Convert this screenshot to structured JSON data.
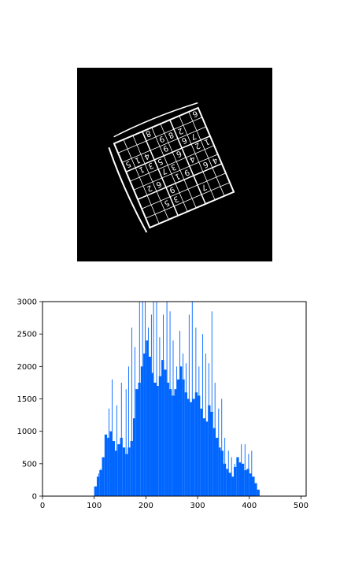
{
  "figure": {
    "background": "#ffffff"
  },
  "image_panel": {
    "background": "#000000",
    "foreground": "#ffffff",
    "description_digits_visible": [
      "6",
      "2",
      "9",
      "8",
      "1",
      "5",
      "9",
      "4",
      "5",
      "3",
      "1",
      "7",
      "6",
      "4",
      "2",
      "7",
      "3",
      "9",
      "6",
      "4",
      "1",
      "6",
      "9",
      "8",
      "6",
      "2",
      "5",
      "7",
      "3",
      "1"
    ]
  },
  "chart_data": {
    "type": "bar",
    "title": "",
    "xlabel": "",
    "ylabel": "",
    "xlim": [
      0,
      510
    ],
    "ylim": [
      0,
      3000
    ],
    "grid": false,
    "xticks": [
      0,
      100,
      200,
      300,
      400,
      500
    ],
    "yticks": [
      0,
      500,
      1000,
      1500,
      2000,
      2500,
      3000
    ],
    "bar_color": "#0066ff",
    "series": [
      {
        "x": [
          100,
          105,
          110,
          115,
          120,
          125,
          130,
          135,
          140,
          145,
          150,
          155,
          160,
          165,
          170,
          175,
          180,
          185,
          190,
          195,
          200,
          205,
          210,
          215,
          220,
          225,
          230,
          235,
          240,
          245,
          250,
          255,
          260,
          265,
          270,
          275,
          280,
          285,
          290,
          295,
          300,
          305,
          310,
          315,
          320,
          325,
          330,
          335,
          340,
          345,
          350,
          355,
          360,
          365,
          370,
          375,
          380,
          385,
          390,
          395,
          400,
          405,
          410,
          415
        ],
        "values": [
          150,
          300,
          400,
          600,
          950,
          900,
          1000,
          850,
          700,
          800,
          900,
          750,
          650,
          750,
          850,
          1200,
          1650,
          1750,
          2000,
          2200,
          2400,
          2150,
          1900,
          1750,
          1700,
          1850,
          2100,
          1950,
          1750,
          1650,
          1550,
          1650,
          1800,
          2000,
          1800,
          1600,
          1500,
          1450,
          1500,
          1600,
          1550,
          1350,
          1200,
          1150,
          1400,
          1300,
          1050,
          900,
          750,
          700,
          500,
          420,
          360,
          300,
          450,
          600,
          520,
          500,
          400,
          420,
          350,
          300,
          200,
          100
        ]
      }
    ],
    "spikes": [
      {
        "x": 108,
        "y": 350
      },
      {
        "x": 112,
        "y": 420
      },
      {
        "x": 128,
        "y": 1350
      },
      {
        "x": 134,
        "y": 1800
      },
      {
        "x": 143,
        "y": 1400
      },
      {
        "x": 152,
        "y": 1750
      },
      {
        "x": 161,
        "y": 1650
      },
      {
        "x": 166,
        "y": 2000
      },
      {
        "x": 172,
        "y": 2600
      },
      {
        "x": 178,
        "y": 2300
      },
      {
        "x": 187,
        "y": 3000
      },
      {
        "x": 193,
        "y": 3000
      },
      {
        "x": 198,
        "y": 3000
      },
      {
        "x": 204,
        "y": 2600
      },
      {
        "x": 210,
        "y": 2800
      },
      {
        "x": 214,
        "y": 3000
      },
      {
        "x": 220,
        "y": 3000
      },
      {
        "x": 226,
        "y": 2450
      },
      {
        "x": 233,
        "y": 2800
      },
      {
        "x": 240,
        "y": 3000
      },
      {
        "x": 246,
        "y": 2850
      },
      {
        "x": 252,
        "y": 2400
      },
      {
        "x": 259,
        "y": 2000
      },
      {
        "x": 265,
        "y": 2550
      },
      {
        "x": 271,
        "y": 2200
      },
      {
        "x": 277,
        "y": 2050
      },
      {
        "x": 283,
        "y": 2800
      },
      {
        "x": 289,
        "y": 3000
      },
      {
        "x": 296,
        "y": 2600
      },
      {
        "x": 302,
        "y": 2000
      },
      {
        "x": 309,
        "y": 2500
      },
      {
        "x": 315,
        "y": 2200
      },
      {
        "x": 321,
        "y": 2050
      },
      {
        "x": 327,
        "y": 2850
      },
      {
        "x": 333,
        "y": 1750
      },
      {
        "x": 340,
        "y": 1350
      },
      {
        "x": 346,
        "y": 1500
      },
      {
        "x": 352,
        "y": 900
      },
      {
        "x": 359,
        "y": 700
      },
      {
        "x": 365,
        "y": 600
      },
      {
        "x": 371,
        "y": 500
      },
      {
        "x": 378,
        "y": 560
      },
      {
        "x": 384,
        "y": 800
      },
      {
        "x": 391,
        "y": 800
      },
      {
        "x": 398,
        "y": 650
      },
      {
        "x": 404,
        "y": 700
      },
      {
        "x": 409,
        "y": 300
      }
    ]
  }
}
